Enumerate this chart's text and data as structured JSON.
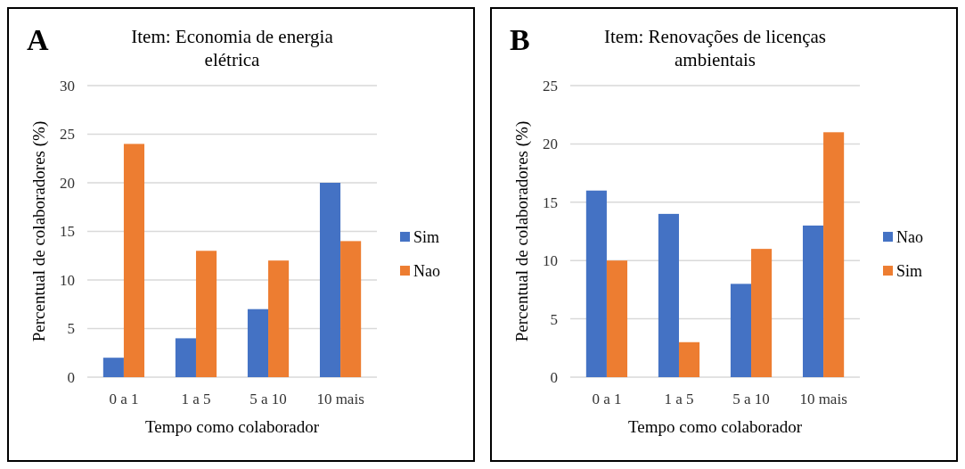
{
  "chart_data": [
    {
      "type": "bar",
      "title": "Item: Economia de energia elétrica",
      "annotations": [
        "A"
      ],
      "xlabel": "Tempo como colaborador",
      "ylabel": "Percentual de colaboradores (%)",
      "categories": [
        "0 a 1",
        "1 a 5",
        "5 a 10",
        "10 mais"
      ],
      "series": [
        {
          "name": "Sim",
          "color": "#4472c4",
          "values": [
            2,
            4,
            7,
            20
          ]
        },
        {
          "name": "Nao",
          "color": "#ed7d31",
          "values": [
            24,
            13,
            12,
            14
          ]
        }
      ],
      "ylim": [
        0,
        30
      ],
      "yticks": [
        0,
        5,
        10,
        15,
        20,
        25,
        30
      ],
      "grid": "y",
      "legend": "right"
    },
    {
      "type": "bar",
      "title": "Item: Renovações de licenças ambientais",
      "annotations": [
        "B"
      ],
      "xlabel": "Tempo como colaborador",
      "ylabel": "Percentual de colaboradores (%)",
      "categories": [
        "0 a 1",
        "1 a 5",
        "5 a 10",
        "10 mais"
      ],
      "series": [
        {
          "name": "Nao",
          "color": "#4472c4",
          "values": [
            16,
            14,
            8,
            13
          ]
        },
        {
          "name": "Sim",
          "color": "#ed7d31",
          "values": [
            10,
            3,
            11,
            21
          ]
        }
      ],
      "ylim": [
        0,
        25
      ],
      "yticks": [
        0,
        5,
        10,
        15,
        20,
        25
      ],
      "grid": "y",
      "legend": "right"
    }
  ]
}
